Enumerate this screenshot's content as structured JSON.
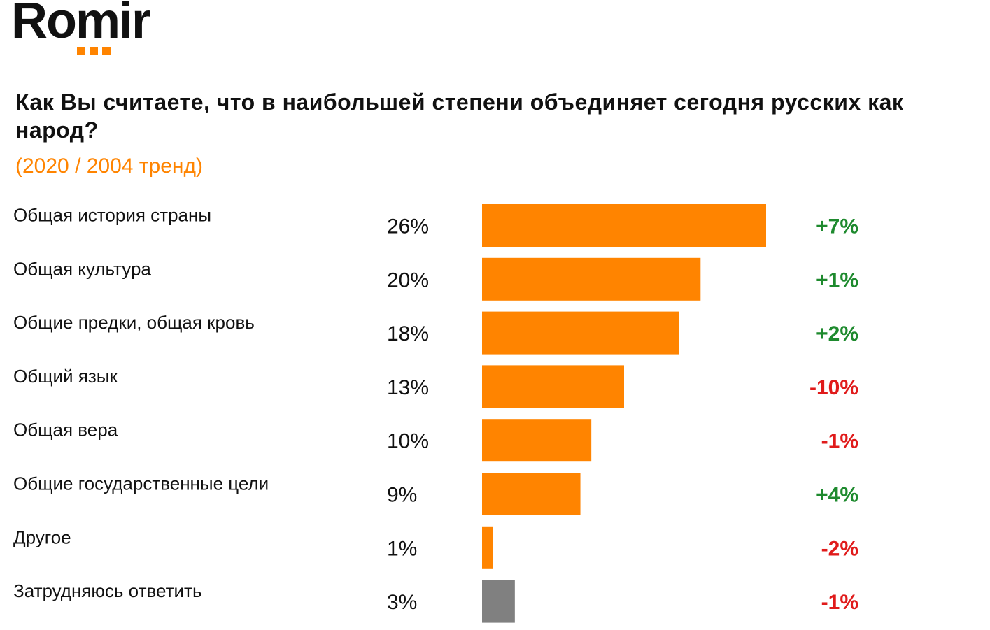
{
  "logo": {
    "text": "Romir"
  },
  "colors": {
    "accent": "#FF8400",
    "bar_other": "#808080",
    "positive": "#1E8A2E",
    "negative": "#E01B1B",
    "text": "#111111"
  },
  "chart_data": {
    "type": "bar",
    "orientation": "horizontal",
    "title": "Как Вы считаете, что в наибольшей степени объединяет сегодня русских как народ?",
    "subtitle": "(2020 / 2004 тренд)",
    "unit": "%",
    "xlim": [
      0,
      26
    ],
    "categories": [
      "Общая история страны",
      "Общая культура",
      "Общие предки, общая кровь",
      "Общий язык",
      "Общая вера",
      "Общие государственные цели",
      "Другое",
      "Затрудняюсь ответить"
    ],
    "values": [
      26,
      20,
      18,
      13,
      10,
      9,
      1,
      3
    ],
    "value_labels": [
      "26%",
      "20%",
      "18%",
      "13%",
      "10%",
      "9%",
      "1%",
      "3%"
    ],
    "changes": [
      7,
      1,
      2,
      -10,
      -1,
      4,
      -2,
      -1
    ],
    "change_labels": [
      "+7%",
      "+1%",
      "+2%",
      "-10%",
      "-1%",
      "+4%",
      "-2%",
      "-1%"
    ],
    "bar_color_keys": [
      "accent",
      "accent",
      "accent",
      "accent",
      "accent",
      "accent",
      "accent",
      "bar_other"
    ]
  }
}
